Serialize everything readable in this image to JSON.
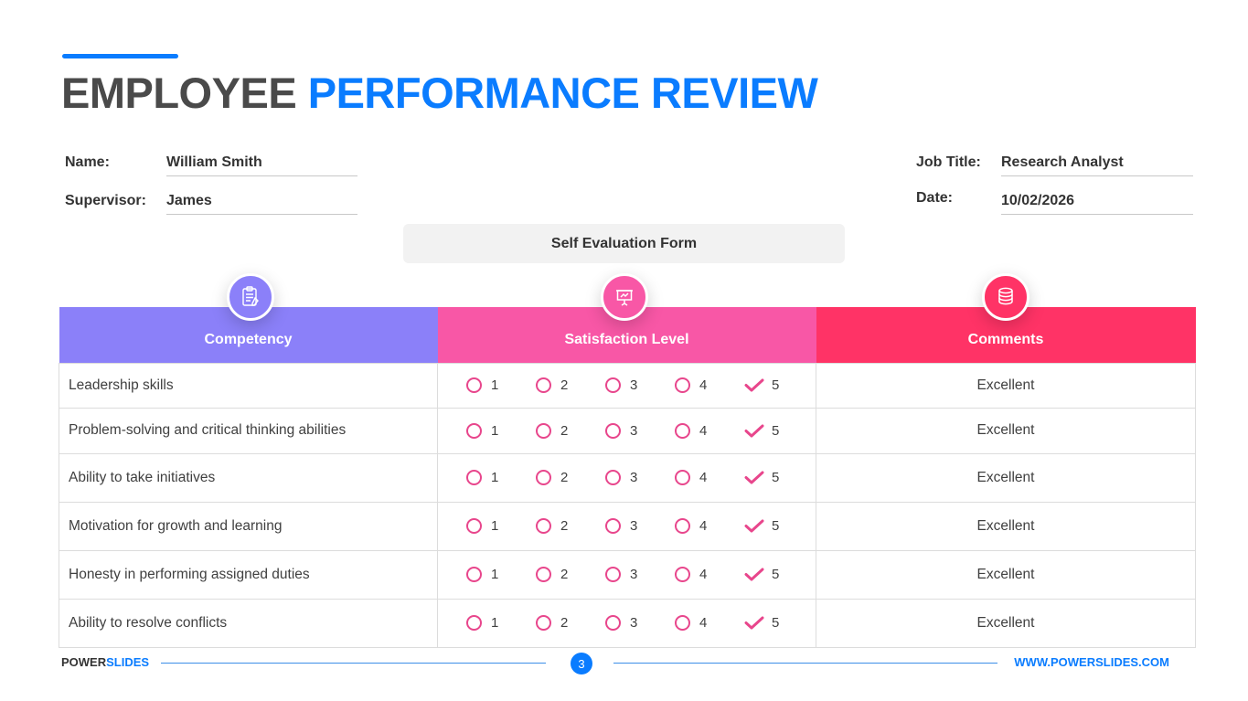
{
  "title": {
    "part1": "EMPLOYEE",
    "part2": "PERFORMANCE REVIEW"
  },
  "fields": {
    "name_label": "Name:",
    "name_value": "William Smith",
    "supervisor_label": "Supervisor:",
    "supervisor_value": "James",
    "job_title_label": "Job Title:",
    "job_title_value": "Research Analyst",
    "date_label": "Date:",
    "date_value": "10/02/2026"
  },
  "form_banner": "Self Evaluation Form",
  "table": {
    "headers": [
      "Competency",
      "Satisfaction Level",
      "Comments"
    ],
    "header_colors": [
      "#8b80f9",
      "#f857a6",
      "#ff3366"
    ],
    "header_icons": [
      "clipboard-icon",
      "presentation-board-icon",
      "database-icon"
    ],
    "level_labels": [
      "1",
      "2",
      "3",
      "4",
      "5"
    ],
    "rows": [
      {
        "competency": "Leadership skills",
        "selected_level": 5,
        "comment": "Excellent"
      },
      {
        "competency": "Problem-solving and critical thinking abilities",
        "selected_level": 5,
        "comment": "Excellent"
      },
      {
        "competency": "Ability to take initiatives",
        "selected_level": 5,
        "comment": "Excellent"
      },
      {
        "competency": "Motivation for growth and learning",
        "selected_level": 5,
        "comment": "Excellent"
      },
      {
        "competency": "Honesty in performing assigned duties",
        "selected_level": 5,
        "comment": "Excellent"
      },
      {
        "competency": "Ability to resolve conflicts",
        "selected_level": 5,
        "comment": "Excellent"
      }
    ]
  },
  "footer": {
    "brand_part1": "POWER",
    "brand_part2": "SLIDES",
    "page_number": "3",
    "url": "WWW.POWERSLIDES.COM"
  }
}
